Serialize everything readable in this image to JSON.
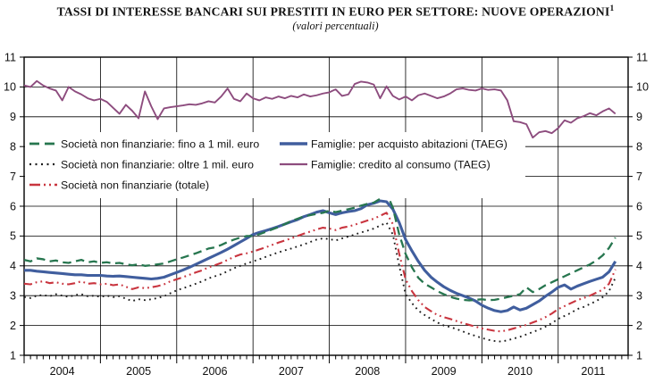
{
  "header": {
    "title": "TASSI DI INTERESSE BANCARI SUI PRESTITI IN EURO PER SETTORE: NUOVE OPERAZIONI",
    "footnote_marker": "1",
    "subtitle": "(valori percentuali)"
  },
  "chart_data": {
    "type": "line",
    "frequency": "monthly",
    "x_start": "2004-01",
    "x_end": "2011-10",
    "ylim": [
      1,
      11
    ],
    "y_ticks": [
      1,
      2,
      3,
      4,
      5,
      6,
      7,
      8,
      9,
      10,
      11
    ],
    "y_axis_sides": "both",
    "x_tick_years": [
      "2004",
      "2005",
      "2006",
      "2007",
      "2008",
      "2009",
      "2010",
      "2011"
    ],
    "grid": {
      "horizontal": true,
      "vertical_at_year_start": true
    },
    "legend_position": "upper-left-inside",
    "legend_columns": [
      [
        0,
        1,
        2
      ],
      [
        3,
        4
      ]
    ],
    "series": [
      {
        "name": "Società non finanziarie: fino a 1 mil. euro",
        "color": "#27764f",
        "line": "dashed",
        "values": [
          4.2,
          4.15,
          4.25,
          4.22,
          4.15,
          4.18,
          4.12,
          4.1,
          4.15,
          4.2,
          4.12,
          4.15,
          4.1,
          4.12,
          4.08,
          4.1,
          4.05,
          4.02,
          4.05,
          4.0,
          4.02,
          4.05,
          4.08,
          4.15,
          4.22,
          4.28,
          4.35,
          4.42,
          4.5,
          4.58,
          4.62,
          4.7,
          4.8,
          4.88,
          4.95,
          5.0,
          5.0,
          5.06,
          5.14,
          5.22,
          5.3,
          5.4,
          5.5,
          5.58,
          5.66,
          5.7,
          5.74,
          5.78,
          5.85,
          5.8,
          5.85,
          5.9,
          5.95,
          6.02,
          6.08,
          6.12,
          6.25,
          6.45,
          5.95,
          5.05,
          4.4,
          3.95,
          3.6,
          3.4,
          3.28,
          3.15,
          3.05,
          2.96,
          2.9,
          2.86,
          2.84,
          2.86,
          2.88,
          2.85,
          2.86,
          2.9,
          2.95,
          3.0,
          3.05,
          3.28,
          3.12,
          3.22,
          3.35,
          3.45,
          3.55,
          3.65,
          3.75,
          3.85,
          3.95,
          4.05,
          4.18,
          4.35,
          4.6,
          4.95
        ]
      },
      {
        "name": "Società non finanziarie: oltre 1 mil. euro",
        "color": "#1c1c1c",
        "line": "dotted",
        "values": [
          2.95,
          2.92,
          3.0,
          3.02,
          2.98,
          3.05,
          3.0,
          2.96,
          3.02,
          3.05,
          2.98,
          3.0,
          2.96,
          3.0,
          2.95,
          2.98,
          2.9,
          2.82,
          2.88,
          2.85,
          2.88,
          2.92,
          2.98,
          3.08,
          3.18,
          3.25,
          3.32,
          3.4,
          3.48,
          3.58,
          3.65,
          3.72,
          3.82,
          3.92,
          4.0,
          4.08,
          4.15,
          4.22,
          4.3,
          4.38,
          4.45,
          4.52,
          4.58,
          4.65,
          4.72,
          4.8,
          4.88,
          4.92,
          4.9,
          4.85,
          4.92,
          4.98,
          5.05,
          5.12,
          5.18,
          5.25,
          5.35,
          5.45,
          5.05,
          4.0,
          3.05,
          2.75,
          2.5,
          2.35,
          2.22,
          2.1,
          2.0,
          1.95,
          1.88,
          1.8,
          1.72,
          1.65,
          1.58,
          1.52,
          1.48,
          1.46,
          1.5,
          1.56,
          1.62,
          1.7,
          1.78,
          1.86,
          1.96,
          2.08,
          2.22,
          2.32,
          2.42,
          2.55,
          2.62,
          2.72,
          2.82,
          2.95,
          3.15,
          3.6
        ]
      },
      {
        "name": "Società non finanziarie (totale)",
        "color": "#c9353f",
        "line": "dash-dot-dot",
        "values": [
          3.4,
          3.38,
          3.45,
          3.48,
          3.42,
          3.45,
          3.4,
          3.38,
          3.42,
          3.48,
          3.4,
          3.42,
          3.38,
          3.4,
          3.35,
          3.38,
          3.3,
          3.22,
          3.28,
          3.25,
          3.28,
          3.32,
          3.38,
          3.48,
          3.55,
          3.62,
          3.7,
          3.78,
          3.85,
          3.95,
          4.02,
          4.1,
          4.2,
          4.3,
          4.38,
          4.42,
          4.48,
          4.55,
          4.62,
          4.7,
          4.78,
          4.85,
          4.92,
          5.0,
          5.08,
          5.15,
          5.22,
          5.28,
          5.25,
          5.2,
          5.28,
          5.32,
          5.38,
          5.45,
          5.52,
          5.58,
          5.68,
          5.78,
          5.4,
          4.4,
          3.55,
          3.15,
          2.85,
          2.62,
          2.48,
          2.35,
          2.28,
          2.22,
          2.15,
          2.08,
          2.02,
          1.96,
          1.9,
          1.86,
          1.82,
          1.8,
          1.84,
          1.9,
          1.96,
          2.02,
          2.1,
          2.18,
          2.28,
          2.4,
          2.55,
          2.65,
          2.75,
          2.85,
          2.92,
          3.0,
          3.1,
          3.2,
          3.4,
          3.88
        ]
      },
      {
        "name": "Famiglie: per acquisto abitazioni (TAEG)",
        "color": "#405e9e",
        "line": "solid-thick",
        "values": [
          3.85,
          3.85,
          3.82,
          3.8,
          3.78,
          3.76,
          3.74,
          3.72,
          3.7,
          3.7,
          3.68,
          3.68,
          3.68,
          3.66,
          3.65,
          3.66,
          3.64,
          3.62,
          3.6,
          3.58,
          3.56,
          3.58,
          3.62,
          3.7,
          3.78,
          3.86,
          3.95,
          4.05,
          4.15,
          4.25,
          4.35,
          4.45,
          4.56,
          4.68,
          4.8,
          4.92,
          5.05,
          5.12,
          5.18,
          5.25,
          5.32,
          5.4,
          5.48,
          5.55,
          5.65,
          5.72,
          5.8,
          5.85,
          5.78,
          5.72,
          5.78,
          5.82,
          5.85,
          5.92,
          6.05,
          6.1,
          6.18,
          6.15,
          5.9,
          5.45,
          4.88,
          4.5,
          4.15,
          3.85,
          3.62,
          3.45,
          3.3,
          3.18,
          3.08,
          3.0,
          2.92,
          2.82,
          2.68,
          2.58,
          2.5,
          2.46,
          2.5,
          2.62,
          2.52,
          2.58,
          2.7,
          2.82,
          2.98,
          3.12,
          3.28,
          3.36,
          3.22,
          3.32,
          3.4,
          3.48,
          3.55,
          3.62,
          3.8,
          4.15
        ]
      },
      {
        "name": "Famiglie: credito al consumo (TAEG)",
        "color": "#8d4c7e",
        "line": "solid",
        "values": [
          10.05,
          10.0,
          10.2,
          10.05,
          9.95,
          9.88,
          9.55,
          10.0,
          9.85,
          9.75,
          9.62,
          9.55,
          9.6,
          9.5,
          9.3,
          9.1,
          9.4,
          9.2,
          8.95,
          9.85,
          9.35,
          8.92,
          9.28,
          9.32,
          9.35,
          9.38,
          9.42,
          9.4,
          9.45,
          9.52,
          9.48,
          9.68,
          9.95,
          9.6,
          9.52,
          9.78,
          9.62,
          9.55,
          9.65,
          9.6,
          9.68,
          9.62,
          9.7,
          9.65,
          9.75,
          9.68,
          9.72,
          9.78,
          9.82,
          9.92,
          9.7,
          9.75,
          10.1,
          10.18,
          10.15,
          10.08,
          9.62,
          10.02,
          9.7,
          9.58,
          9.68,
          9.55,
          9.72,
          9.78,
          9.7,
          9.62,
          9.68,
          9.78,
          9.92,
          9.95,
          9.9,
          9.88,
          9.95,
          9.9,
          9.92,
          9.88,
          9.55,
          8.85,
          8.82,
          8.75,
          8.3,
          8.48,
          8.52,
          8.45,
          8.62,
          8.88,
          8.8,
          8.95,
          9.02,
          9.12,
          9.05,
          9.18,
          9.28,
          9.1
        ]
      }
    ]
  }
}
